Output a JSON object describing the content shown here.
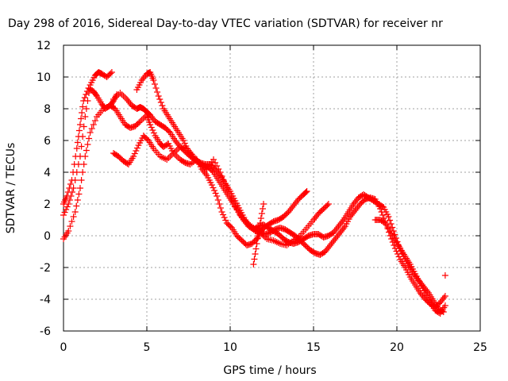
{
  "chart_data": {
    "type": "scatter",
    "title": "Day 298 of 2016, Sidereal Day-to-day VTEC variation (SDTVAR) for receiver nr",
    "xlabel": "GPS time / hours",
    "ylabel": "SDTVAR / TECUs",
    "xlim": [
      0,
      25
    ],
    "ylim": [
      -6,
      12
    ],
    "x_ticks": [
      0,
      5,
      10,
      15,
      20,
      25
    ],
    "y_ticks": [
      -6,
      -4,
      -2,
      0,
      2,
      4,
      6,
      8,
      10,
      12
    ],
    "grid": true,
    "marker": "+",
    "series": [
      {
        "name": "track-1",
        "color": "#ff0000",
        "x": [
          0.0,
          0.2,
          0.5,
          0.8,
          1.0,
          1.2,
          1.5,
          1.8,
          2.0,
          2.3,
          2.5,
          2.8,
          3.0,
          3.2
        ],
        "y": [
          2.0,
          2.5,
          3.5,
          5.5,
          7.0,
          8.5,
          9.3,
          9.1,
          8.8,
          8.3,
          8.0,
          8.2,
          8.5,
          8.9
        ]
      },
      {
        "name": "track-2",
        "color": "#ff0000",
        "x": [
          0.0,
          0.3,
          0.6,
          1.0,
          1.3,
          1.6,
          1.9,
          2.1,
          2.3,
          2.6,
          2.9
        ],
        "y": [
          1.3,
          2.0,
          3.0,
          5.0,
          7.5,
          9.5,
          10.1,
          10.3,
          10.2,
          10.0,
          10.3
        ]
      },
      {
        "name": "track-3",
        "color": "#ff0000",
        "x": [
          0.0,
          0.3,
          0.7,
          1.0,
          1.3,
          1.6,
          2.0,
          2.4,
          2.8,
          3.1,
          3.4,
          3.7,
          4.0,
          4.3,
          4.6,
          5.0,
          5.2,
          5.5,
          5.8,
          6.0,
          6.3,
          6.6,
          7.0,
          7.3,
          7.6,
          8.0,
          8.3,
          8.6,
          8.9,
          9.2,
          9.5,
          9.8,
          10.1,
          10.4,
          10.7,
          11.0,
          11.3,
          11.6,
          11.8,
          12.0,
          12.3,
          12.6,
          12.9,
          13.2,
          13.5,
          13.8,
          14.1,
          14.4,
          14.6
        ],
        "y": [
          -0.2,
          0.3,
          1.5,
          3.0,
          5.0,
          6.5,
          7.5,
          8.0,
          8.2,
          8.0,
          7.5,
          7.0,
          6.8,
          6.9,
          7.2,
          7.6,
          7.0,
          6.3,
          5.8,
          5.6,
          5.8,
          5.2,
          4.8,
          4.6,
          4.5,
          4.8,
          4.2,
          3.8,
          3.2,
          2.5,
          1.5,
          0.8,
          0.5,
          0.0,
          -0.3,
          -0.6,
          -0.5,
          -0.2,
          0.2,
          0.5,
          0.7,
          0.9,
          1.0,
          1.2,
          1.5,
          1.9,
          2.3,
          2.6,
          2.8
        ]
      },
      {
        "name": "track-4",
        "color": "#ff0000",
        "x": [
          3.0,
          3.3,
          3.6,
          3.9,
          4.2,
          4.5,
          4.8,
          5.1,
          5.4,
          5.8,
          6.2,
          6.6,
          7.0,
          7.4,
          7.8,
          8.2,
          8.6,
          9.0,
          9.4,
          9.8,
          10.2,
          10.6,
          11.0,
          11.4,
          11.8,
          12.2,
          12.6,
          13.0,
          13.4,
          13.8,
          14.2,
          14.6,
          15.0,
          15.3,
          15.6,
          15.9
        ],
        "y": [
          5.2,
          5.0,
          4.7,
          4.5,
          5.0,
          5.7,
          6.3,
          6.0,
          5.5,
          5.0,
          4.8,
          5.2,
          5.6,
          5.5,
          5.0,
          4.5,
          4.2,
          4.8,
          4.0,
          3.0,
          2.0,
          1.3,
          0.8,
          0.5,
          0.2,
          -0.2,
          -0.3,
          -0.5,
          -0.6,
          -0.3,
          0.0,
          0.5,
          1.0,
          1.4,
          1.7,
          2.0
        ]
      },
      {
        "name": "track-5",
        "color": "#ff0000",
        "x": [
          3.0,
          3.4,
          3.8,
          4.1,
          4.4,
          4.6,
          4.8,
          5.0,
          5.2,
          5.5,
          5.8,
          6.1,
          6.4,
          6.7,
          7.0,
          7.3,
          7.6,
          7.9,
          8.2,
          8.5,
          8.8,
          9.1,
          9.4,
          9.7,
          10.0,
          10.3,
          10.6,
          10.9,
          11.2,
          11.5,
          11.8,
          12.1,
          12.4,
          12.7,
          13.0,
          13.3,
          13.6,
          13.9,
          14.2,
          14.5,
          14.8,
          15.1,
          15.4,
          15.7,
          16.0,
          16.3,
          16.6,
          16.9,
          17.2,
          17.5,
          17.8,
          18.1,
          18.4,
          18.7,
          19.0,
          19.3,
          19.6,
          19.9,
          20.2,
          20.5,
          20.8,
          21.1,
          21.4,
          21.7,
          22.0,
          22.3,
          22.6,
          22.9
        ],
        "y": [
          8.6,
          9.0,
          8.6,
          8.2,
          8.0,
          8.1,
          8.0,
          7.8,
          7.6,
          7.2,
          7.0,
          6.8,
          6.5,
          6.0,
          5.6,
          5.3,
          5.0,
          4.8,
          4.6,
          4.5,
          4.5,
          4.2,
          3.8,
          3.3,
          2.8,
          2.2,
          1.6,
          1.0,
          0.6,
          0.3,
          0.2,
          0.1,
          0.2,
          0.4,
          0.5,
          0.4,
          0.2,
          0.0,
          -0.3,
          -0.6,
          -0.9,
          -1.1,
          -1.2,
          -1.0,
          -0.6,
          -0.2,
          0.2,
          0.6,
          1.2,
          1.6,
          2.0,
          2.3,
          2.4,
          2.3,
          1.7,
          0.9,
          0.0,
          -0.8,
          -1.5,
          -2.0,
          -2.6,
          -3.1,
          -3.6,
          -4.0,
          -4.3,
          -4.5,
          -4.2,
          -3.8
        ]
      },
      {
        "name": "track-6",
        "color": "#ff0000",
        "x": [
          4.4,
          4.7,
          5.0,
          5.2,
          5.4,
          5.7,
          6.0,
          6.3,
          6.6,
          6.9,
          7.2,
          7.5,
          7.8,
          8.1,
          8.4,
          8.7,
          9.0,
          9.3,
          9.6,
          9.9,
          10.2,
          10.5,
          10.8,
          11.1,
          11.4,
          11.7,
          12.0,
          12.3,
          12.6,
          12.9,
          13.2,
          13.5,
          13.8,
          14.1,
          14.4,
          14.7,
          15.0,
          15.3,
          15.6,
          15.9,
          16.2,
          16.5,
          16.8,
          17.1,
          17.4,
          17.7,
          18.0,
          18.3,
          18.6,
          18.9,
          19.2,
          19.5,
          19.8,
          20.1,
          20.4,
          20.7,
          21.0,
          21.3,
          21.6,
          21.9,
          22.2,
          22.5,
          22.8
        ],
        "y": [
          9.2,
          9.8,
          10.2,
          10.3,
          9.8,
          8.8,
          8.0,
          7.5,
          7.0,
          6.5,
          6.0,
          5.3,
          4.9,
          4.6,
          4.4,
          4.3,
          4.0,
          3.5,
          3.0,
          2.5,
          2.0,
          1.5,
          1.0,
          0.6,
          0.4,
          0.6,
          0.7,
          0.5,
          0.3,
          0.1,
          -0.2,
          -0.4,
          -0.5,
          -0.4,
          -0.2,
          0.0,
          0.1,
          0.1,
          -0.1,
          0.0,
          0.2,
          0.6,
          1.0,
          1.5,
          2.0,
          2.4,
          2.6,
          2.4,
          2.2,
          2.0,
          1.8,
          1.2,
          0.3,
          -0.6,
          -1.3,
          -1.9,
          -2.4,
          -2.8,
          -3.2,
          -3.6,
          -4.1,
          -4.6,
          -4.8
        ]
      },
      {
        "name": "track-7",
        "color": "#ff0000",
        "x": [
          18.7,
          19.0,
          19.3,
          19.6,
          19.9,
          20.2,
          20.5,
          20.8,
          21.1,
          21.4,
          21.7,
          22.0,
          22.3,
          22.6,
          22.9
        ],
        "y": [
          1.0,
          1.0,
          0.8,
          0.3,
          -0.3,
          -0.8,
          -1.3,
          -1.8,
          -2.4,
          -3.0,
          -3.6,
          -4.2,
          -4.7,
          -4.9,
          -4.4
        ]
      },
      {
        "name": "track-8",
        "color": "#ff0000",
        "x": [
          11.4,
          11.6,
          11.8,
          12.0
        ],
        "y": [
          -1.8,
          -0.5,
          0.8,
          2.0
        ]
      },
      {
        "name": "track-9",
        "color": "#ff0000",
        "x": [
          22.9
        ],
        "y": [
          -2.5
        ]
      }
    ]
  }
}
